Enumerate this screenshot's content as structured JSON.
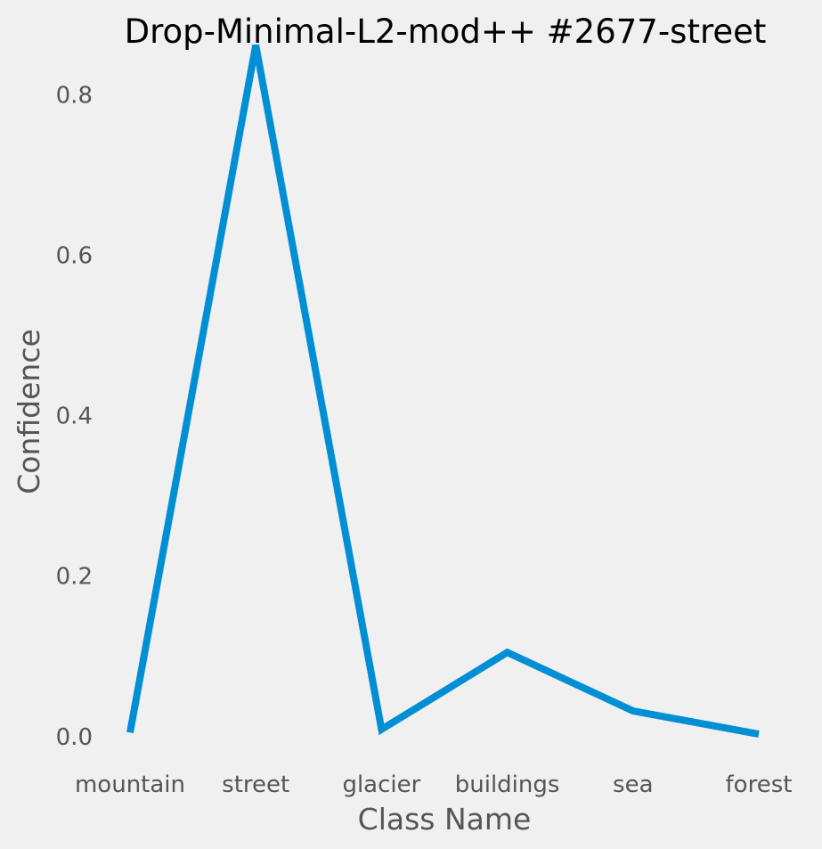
{
  "chart_data": {
    "type": "line",
    "title": "Drop-Minimal-L2-mod++ #2677-street",
    "xlabel": "Class Name",
    "ylabel": "Confidence",
    "categories": [
      "mountain",
      "street",
      "glacier",
      "buildings",
      "sea",
      "forest"
    ],
    "series": [
      {
        "values": [
          0.005,
          0.862,
          0.009,
          0.105,
          0.032,
          0.003
        ]
      }
    ],
    "ylim": [
      -0.028,
      0.875
    ],
    "yticks": [
      0.0,
      0.2,
      0.4,
      0.6,
      0.8
    ],
    "ytick_labels": [
      "0.0",
      "0.2",
      "0.4",
      "0.6",
      "0.8"
    ],
    "grid": false,
    "legend": "none",
    "colors": {
      "background": "#f0f0f0",
      "line": "#008fd5",
      "tick_text": "#555555",
      "title_text": "#000000"
    }
  }
}
